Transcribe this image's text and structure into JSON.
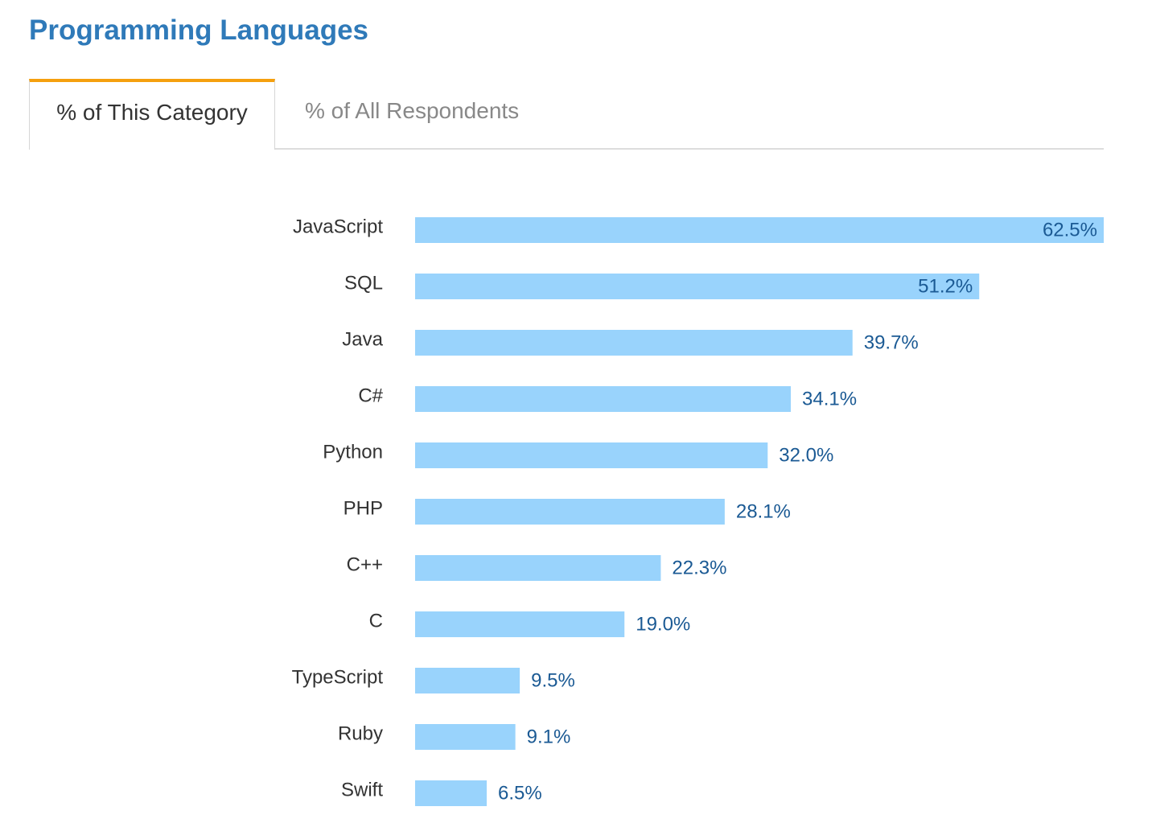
{
  "title": "Programming Languages",
  "tabs": [
    {
      "label": "% of This Category",
      "active": true
    },
    {
      "label": "% of All Respondents",
      "active": false
    }
  ],
  "colors": {
    "title": "#2f7ab9",
    "tab_accent": "#f5a00e",
    "bar": "#99d3fc",
    "value_label": "#1b5a94",
    "category_label": "#333333"
  },
  "chart_data": {
    "type": "bar",
    "orientation": "horizontal",
    "categories": [
      "JavaScript",
      "SQL",
      "Java",
      "C#",
      "Python",
      "PHP",
      "C++",
      "C",
      "TypeScript",
      "Ruby",
      "Swift"
    ],
    "values": [
      62.5,
      51.2,
      39.7,
      34.1,
      32.0,
      28.1,
      22.3,
      19.0,
      9.5,
      9.1,
      6.5
    ],
    "value_labels": [
      "62.5%",
      "51.2%",
      "39.7%",
      "34.1%",
      "32.0%",
      "28.1%",
      "22.3%",
      "19.0%",
      "9.5%",
      "9.1%",
      "6.5%"
    ],
    "xlim": [
      0,
      62.5
    ],
    "grid": false,
    "legend": "none"
  }
}
